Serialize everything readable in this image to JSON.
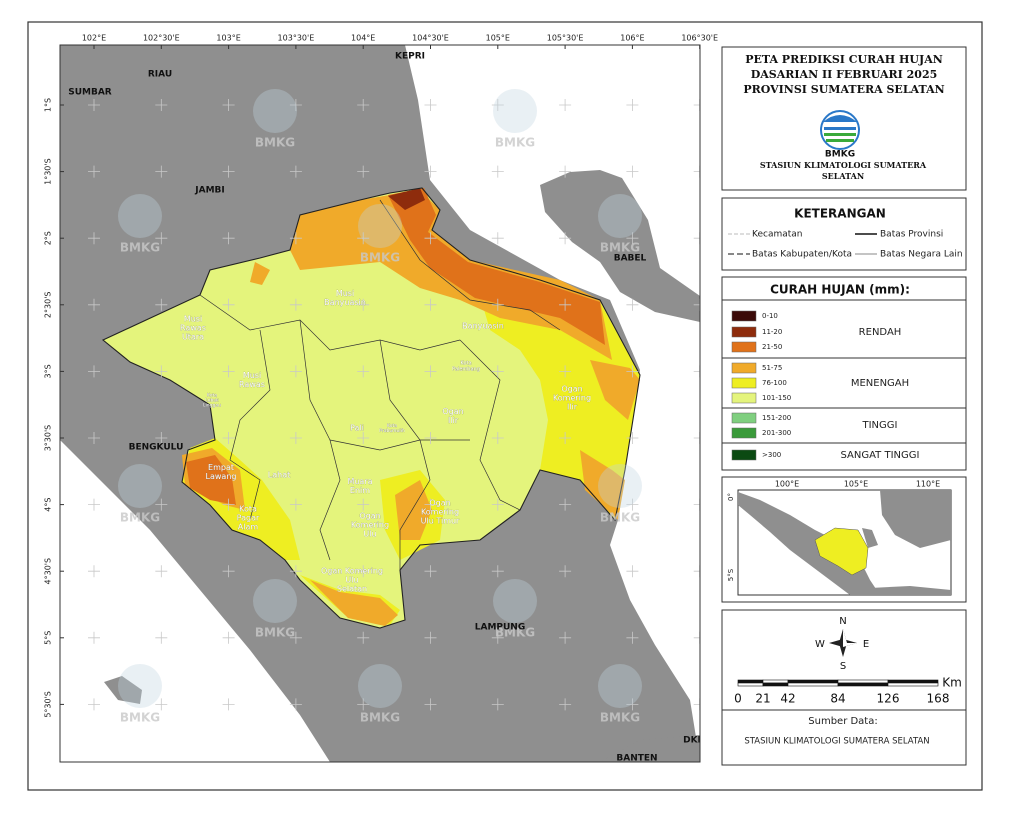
{
  "header": {
    "title_lines": [
      "PETA PREDIKSI CURAH HUJAN",
      "DASARIAN II FEBRUARI 2025",
      "PROVINSI SUMATERA SELATAN"
    ],
    "logo_text": "BMKG",
    "station_lines": [
      "STASIUN KLIMATOLOGI SUMATERA",
      "SELATAN"
    ]
  },
  "map": {
    "lon_labels": [
      "102°E",
      "102°30'E",
      "103°E",
      "103°30'E",
      "104°E",
      "104°30'E",
      "105°E",
      "105°30'E",
      "106°E",
      "106°30'E"
    ],
    "lat_labels": [
      "1°S",
      "1°30'S",
      "2°S",
      "2°30'S",
      "3°S",
      "3°30'S",
      "4°S",
      "4°30'S",
      "5°S",
      "5°30'S"
    ],
    "regions": [
      "SUMBAR",
      "RIAU",
      "KEPRI",
      "JAMBI",
      "BABEL",
      "BENGKULU",
      "LAMPUNG",
      "DKI",
      "BANTEN"
    ],
    "districts": [
      [
        "Musi",
        "Banyuasin"
      ],
      [
        "Musi",
        "Rawas",
        "Utara"
      ],
      [
        "Musi",
        "Rawas"
      ],
      [
        "Banyuasin"
      ],
      [
        "Kota",
        "Palembang"
      ],
      [
        "Pali"
      ],
      [
        "Ogan",
        "Ilir"
      ],
      [
        "Ogan",
        "Komering",
        "Ilir"
      ],
      [
        "Kota",
        "Lubuk",
        "Linggau"
      ],
      [
        "Kota",
        "Prabumulih"
      ],
      [
        "Lahat"
      ],
      [
        "Muara",
        "Enim"
      ],
      [
        "Empat",
        "Lawang"
      ],
      [
        "Kota",
        "Pagar",
        "Alam"
      ],
      [
        "Ogan",
        "Komering",
        "Ulu"
      ],
      [
        "Ogan",
        "Komering",
        "Ulu Timur"
      ],
      [
        "Ogan Komering",
        "Ulu",
        "Selatan"
      ]
    ],
    "watermark": "BMKG"
  },
  "keterangan": {
    "title": "KETERANGAN",
    "items": [
      "Kecamatan",
      "Batas Provinsi",
      "Batas Kabupaten/Kota",
      "Batas Negara Lain"
    ]
  },
  "legend": {
    "title": "CURAH HUJAN (mm):",
    "classes": [
      {
        "label": "0-10",
        "color": "#3b0a08"
      },
      {
        "label": "11-20",
        "color": "#8e2c0c"
      },
      {
        "label": "21-50",
        "color": "#e0721a"
      },
      {
        "label": "51-75",
        "color": "#f0aa2a"
      },
      {
        "label": "76-100",
        "color": "#eeee22"
      },
      {
        "label": "101-150",
        "color": "#e4f47c"
      },
      {
        "label": "151-200",
        "color": "#7fcf7f"
      },
      {
        "label": "201-300",
        "color": "#3a9a3a"
      },
      {
        "label": ">300",
        "color": "#0b4a12"
      }
    ],
    "groups": [
      "RENDAH",
      "MENENGAH",
      "TINGGI",
      "SANGAT TINGGI"
    ]
  },
  "inset": {
    "lon_labels": [
      "100°E",
      "105°E",
      "110°E"
    ],
    "lat_labels": [
      "0°",
      "5°S"
    ]
  },
  "compass": {
    "n": "N",
    "s": "S",
    "w": "W",
    "e": "E"
  },
  "scale": {
    "ticks": [
      0,
      21,
      42,
      84,
      126,
      168
    ],
    "unit": "Km"
  },
  "source": {
    "label": "Sumber Data:",
    "text": "STASIUN KLIMATOLOGI SUMATERA SELATAN"
  }
}
